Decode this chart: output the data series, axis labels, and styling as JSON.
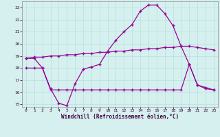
{
  "x": [
    0,
    1,
    2,
    3,
    4,
    5,
    6,
    7,
    8,
    9,
    10,
    11,
    12,
    13,
    14,
    15,
    16,
    17,
    18,
    19,
    20,
    21,
    22,
    23
  ],
  "line1": [
    18.8,
    18.8,
    18.0,
    16.3,
    15.1,
    14.9,
    16.7,
    17.9,
    18.1,
    18.3,
    19.4,
    20.3,
    21.0,
    21.6,
    22.7,
    23.2,
    23.2,
    22.5,
    21.5,
    19.8,
    18.3,
    16.6,
    16.4,
    16.2
  ],
  "line2": [
    18.8,
    18.9,
    18.9,
    19.0,
    19.0,
    19.1,
    19.1,
    19.2,
    19.2,
    19.3,
    19.3,
    19.4,
    19.4,
    19.5,
    19.5,
    19.6,
    19.6,
    19.7,
    19.7,
    19.8,
    19.8,
    19.7,
    19.6,
    19.5
  ],
  "line3": [
    18.0,
    18.0,
    18.0,
    16.2,
    16.2,
    16.2,
    16.2,
    16.2,
    16.2,
    16.2,
    16.2,
    16.2,
    16.2,
    16.2,
    16.2,
    16.2,
    16.2,
    16.2,
    16.2,
    16.2,
    18.3,
    16.6,
    16.3,
    16.2
  ],
  "line_color": "#990099",
  "bg_color": "#d5f0ee",
  "grid_color": "#b8e0dc",
  "xlabel": "Windchill (Refroidissement éolien,°C)",
  "ylim": [
    14.8,
    23.5
  ],
  "xlim": [
    -0.5,
    23.5
  ],
  "yticks": [
    15,
    16,
    17,
    18,
    19,
    20,
    21,
    22,
    23
  ],
  "xticks": [
    0,
    1,
    2,
    3,
    4,
    5,
    6,
    7,
    8,
    9,
    10,
    11,
    12,
    13,
    14,
    15,
    16,
    17,
    18,
    19,
    20,
    21,
    22,
    23
  ],
  "marker": "+"
}
